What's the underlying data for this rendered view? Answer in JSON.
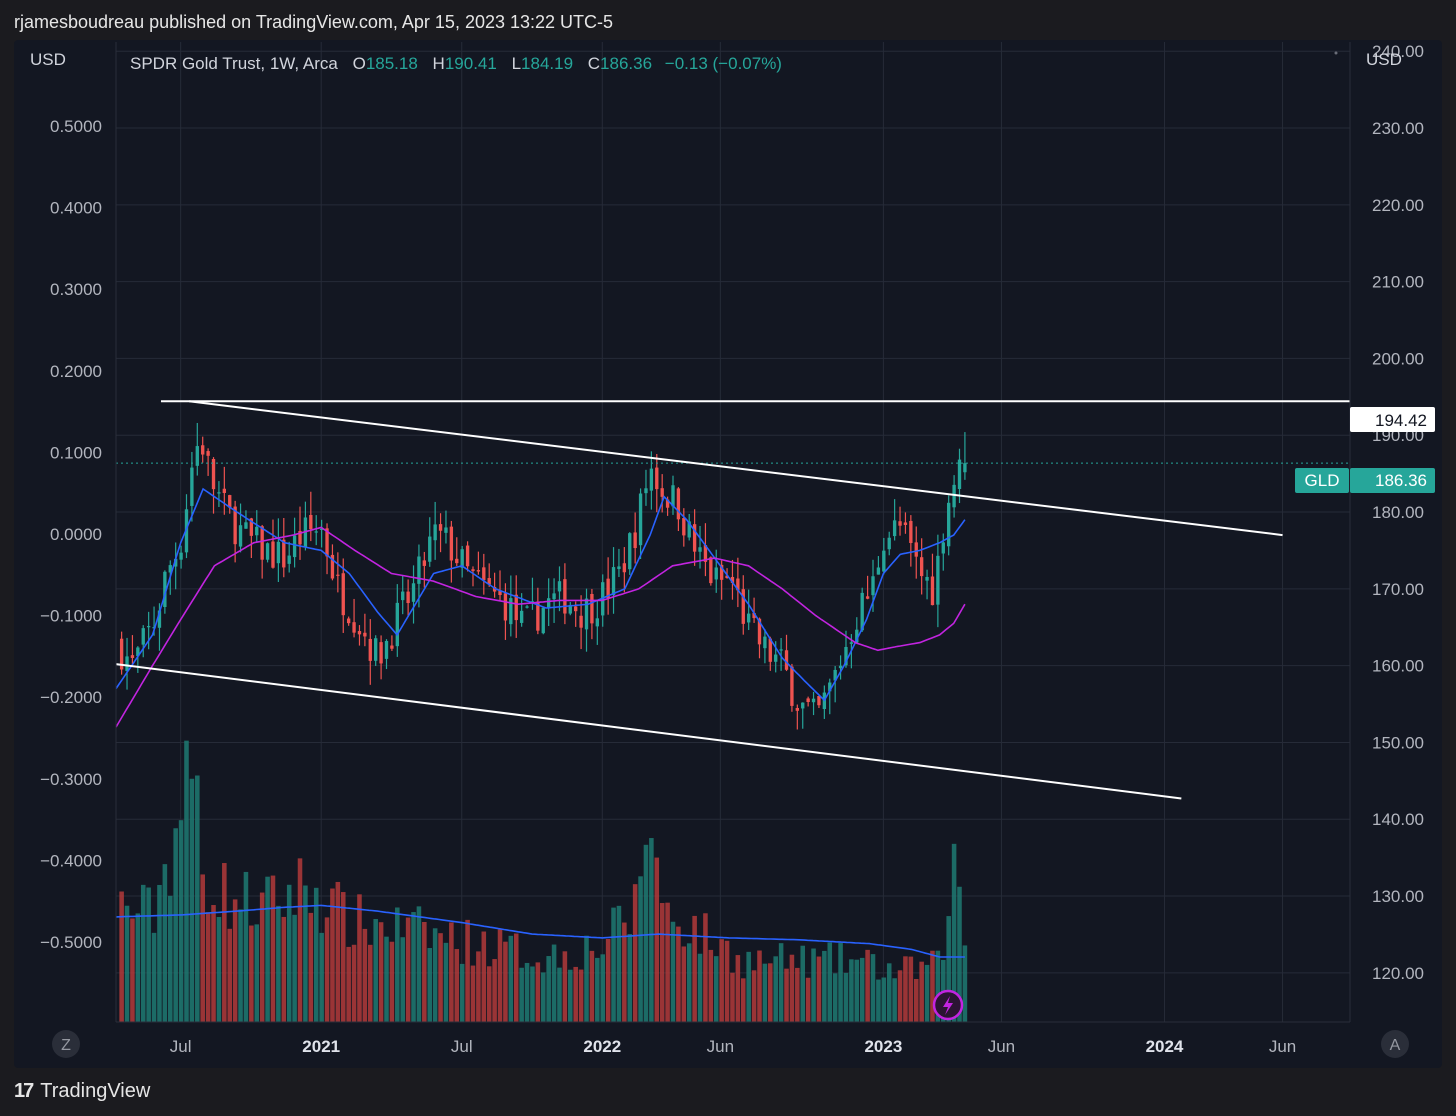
{
  "header": {
    "attribution": "rjamesboudreau published on TradingView.com, Apr 15, 2023 13:22 UTC-5"
  },
  "legend": {
    "symbol": "SPDR Gold Trust, 1W, Arca",
    "o_label": "O",
    "o_value": "185.18",
    "h_label": "H",
    "h_value": "190.41",
    "l_label": "L",
    "l_value": "184.19",
    "c_label": "C",
    "c_value": "186.36",
    "change": "−0.13 (−0.07%)"
  },
  "axes": {
    "left_currency": "USD",
    "right_currency": "USD",
    "left_scale_buttons": "Z",
    "right_scale_button": "A"
  },
  "price_labels": {
    "resistance": "194.42",
    "ticker": "GLD",
    "last": "186.36"
  },
  "footer": {
    "brand": "TradingView",
    "brand_mark": "17"
  },
  "colors": {
    "background": "#131722",
    "up": "#26a69a",
    "down": "#ef5350",
    "up_volume": "#1e7a72",
    "down_volume": "#b33a3a",
    "ma_fast": "#2962ff",
    "ma_slow": "#c224e0",
    "volume_ma": "#2962ff",
    "trendline": "#ffffff",
    "grid": "#262b38"
  },
  "chart_data": {
    "type": "candlestick",
    "title": "SPDR Gold Trust, 1W, Arca",
    "timeframe": "1W",
    "x_tick_labels": [
      "Jul",
      "2021",
      "Jul",
      "2022",
      "Jun",
      "2023",
      "Jun",
      "2024",
      "Jun"
    ],
    "x_tick_bold": [
      false,
      true,
      false,
      true,
      false,
      true,
      false,
      true,
      false
    ],
    "x_tick_dates": [
      2020.5,
      2021.0,
      2021.5,
      2022.0,
      2022.42,
      2023.0,
      2023.42,
      2024.0,
      2024.42
    ],
    "right_axis": {
      "range": [
        113.6,
        241.2
      ],
      "ticks": [
        "240.00",
        "230.00",
        "220.00",
        "210.00",
        "200.00",
        "190.00",
        "180.00",
        "170.00",
        "160.00",
        "150.00",
        "140.00",
        "130.00",
        "120.00"
      ]
    },
    "left_axis": {
      "range": [
        -0.598,
        0.603
      ],
      "ticks": [
        "0.5000",
        "0.4000",
        "0.3000",
        "0.2000",
        "0.1000",
        "0.0000",
        "−0.1000",
        "−0.2000",
        "−0.3000",
        "−0.4000",
        "−0.5000"
      ]
    },
    "x_range": [
      2020.27,
      2024.66
    ],
    "last_close": 186.36,
    "weekly_close_anchors": [
      [
        2020.29,
        162
      ],
      [
        2020.33,
        160
      ],
      [
        2020.37,
        163
      ],
      [
        2020.41,
        166
      ],
      [
        2020.45,
        172
      ],
      [
        2020.5,
        176
      ],
      [
        2020.54,
        186
      ],
      [
        2020.57,
        190
      ],
      [
        2020.61,
        184
      ],
      [
        2020.66,
        180
      ],
      [
        2020.72,
        177
      ],
      [
        2020.8,
        175
      ],
      [
        2020.87,
        174
      ],
      [
        2020.93,
        177
      ],
      [
        2021.0,
        178
      ],
      [
        2021.06,
        170
      ],
      [
        2021.13,
        166
      ],
      [
        2021.2,
        161
      ],
      [
        2021.27,
        166
      ],
      [
        2021.33,
        170
      ],
      [
        2021.4,
        177
      ],
      [
        2021.45,
        176
      ],
      [
        2021.52,
        172
      ],
      [
        2021.58,
        170
      ],
      [
        2021.66,
        168
      ],
      [
        2021.72,
        165
      ],
      [
        2021.8,
        168
      ],
      [
        2021.87,
        169
      ],
      [
        2021.93,
        167
      ],
      [
        2022.0,
        169
      ],
      [
        2022.06,
        172
      ],
      [
        2022.12,
        178
      ],
      [
        2022.17,
        186
      ],
      [
        2022.21,
        183
      ],
      [
        2022.27,
        181
      ],
      [
        2022.33,
        175
      ],
      [
        2022.4,
        171
      ],
      [
        2022.46,
        171
      ],
      [
        2022.52,
        165
      ],
      [
        2022.58,
        162
      ],
      [
        2022.64,
        160
      ],
      [
        2022.7,
        155
      ],
      [
        2022.76,
        153
      ],
      [
        2022.8,
        156
      ],
      [
        2022.86,
        162
      ],
      [
        2022.91,
        167
      ],
      [
        2022.96,
        170
      ],
      [
        2023.0,
        177
      ],
      [
        2023.06,
        178
      ],
      [
        2023.13,
        172
      ],
      [
        2023.18,
        170
      ],
      [
        2023.22,
        180
      ],
      [
        2023.25,
        184
      ],
      [
        2023.29,
        186.36
      ]
    ],
    "volume_weekly_anchors": [
      [
        2020.29,
        0.3
      ],
      [
        2020.4,
        0.28
      ],
      [
        2020.5,
        0.55
      ],
      [
        2020.55,
        0.65
      ],
      [
        2020.58,
        0.4
      ],
      [
        2020.66,
        0.33
      ],
      [
        2020.8,
        0.3
      ],
      [
        2020.95,
        0.36
      ],
      [
        2021.1,
        0.26
      ],
      [
        2021.25,
        0.25
      ],
      [
        2021.45,
        0.22
      ],
      [
        2021.6,
        0.2
      ],
      [
        2021.8,
        0.17
      ],
      [
        2022.0,
        0.2
      ],
      [
        2022.12,
        0.3
      ],
      [
        2022.17,
        0.58
      ],
      [
        2022.21,
        0.3
      ],
      [
        2022.35,
        0.23
      ],
      [
        2022.5,
        0.16
      ],
      [
        2022.7,
        0.16
      ],
      [
        2022.9,
        0.16
      ],
      [
        2023.05,
        0.13
      ],
      [
        2023.2,
        0.15
      ],
      [
        2023.25,
        0.4
      ],
      [
        2023.29,
        0.26
      ]
    ],
    "series": [
      {
        "name": "MA fast",
        "color_key": "ma_fast",
        "values": [
          [
            2020.27,
            157
          ],
          [
            2020.4,
            164
          ],
          [
            2020.5,
            176
          ],
          [
            2020.58,
            183
          ],
          [
            2020.7,
            180
          ],
          [
            2020.87,
            176
          ],
          [
            2021.0,
            175
          ],
          [
            2021.1,
            172
          ],
          [
            2021.2,
            167
          ],
          [
            2021.27,
            164
          ],
          [
            2021.4,
            172
          ],
          [
            2021.5,
            173
          ],
          [
            2021.62,
            170
          ],
          [
            2021.8,
            167.5
          ],
          [
            2021.95,
            168
          ],
          [
            2022.08,
            170
          ],
          [
            2022.17,
            177
          ],
          [
            2022.22,
            182
          ],
          [
            2022.3,
            179
          ],
          [
            2022.4,
            174
          ],
          [
            2022.52,
            168
          ],
          [
            2022.64,
            161
          ],
          [
            2022.72,
            158
          ],
          [
            2022.79,
            155.5
          ],
          [
            2022.86,
            160
          ],
          [
            2022.94,
            166
          ],
          [
            2023.0,
            172
          ],
          [
            2023.06,
            174.5
          ],
          [
            2023.13,
            175
          ],
          [
            2023.2,
            176
          ],
          [
            2023.25,
            177
          ],
          [
            2023.29,
            179
          ]
        ]
      },
      {
        "name": "MA slow",
        "color_key": "ma_slow",
        "values": [
          [
            2020.27,
            152
          ],
          [
            2020.4,
            160
          ],
          [
            2020.5,
            166
          ],
          [
            2020.62,
            173
          ],
          [
            2020.76,
            176
          ],
          [
            2020.9,
            177
          ],
          [
            2021.0,
            178
          ],
          [
            2021.12,
            175
          ],
          [
            2021.25,
            172
          ],
          [
            2021.4,
            171
          ],
          [
            2021.55,
            169
          ],
          [
            2021.7,
            168
          ],
          [
            2021.85,
            168.5
          ],
          [
            2022.0,
            168.5
          ],
          [
            2022.13,
            170
          ],
          [
            2022.25,
            173
          ],
          [
            2022.4,
            174
          ],
          [
            2022.52,
            173
          ],
          [
            2022.64,
            170
          ],
          [
            2022.76,
            166.5
          ],
          [
            2022.9,
            163
          ],
          [
            2022.98,
            162
          ],
          [
            2023.05,
            162.5
          ],
          [
            2023.13,
            163
          ],
          [
            2023.2,
            164
          ],
          [
            2023.25,
            165.5
          ],
          [
            2023.29,
            168
          ]
        ]
      },
      {
        "name": "Volume MA",
        "color_key": "volume_ma",
        "values": [
          [
            2020.27,
            0.275
          ],
          [
            2020.5,
            0.28
          ],
          [
            2020.7,
            0.29
          ],
          [
            2020.87,
            0.3
          ],
          [
            2021.0,
            0.305
          ],
          [
            2021.2,
            0.29
          ],
          [
            2021.5,
            0.26
          ],
          [
            2021.75,
            0.23
          ],
          [
            2022.0,
            0.22
          ],
          [
            2022.2,
            0.23
          ],
          [
            2022.45,
            0.22
          ],
          [
            2022.7,
            0.215
          ],
          [
            2022.95,
            0.205
          ],
          [
            2023.1,
            0.19
          ],
          [
            2023.2,
            0.17
          ],
          [
            2023.29,
            0.17
          ]
        ]
      }
    ],
    "trendlines": [
      {
        "name": "horizontal resistance",
        "points": [
          [
            2020.43,
            194.42
          ],
          [
            2024.66,
            194.42
          ]
        ]
      },
      {
        "name": "upper channel",
        "points": [
          [
            2020.53,
            194.42
          ],
          [
            2024.42,
            177.0
          ]
        ]
      },
      {
        "name": "lower channel",
        "points": [
          [
            2020.27,
            160.2
          ],
          [
            2024.06,
            142.7
          ]
        ]
      }
    ],
    "current_price_line": 186.36
  }
}
